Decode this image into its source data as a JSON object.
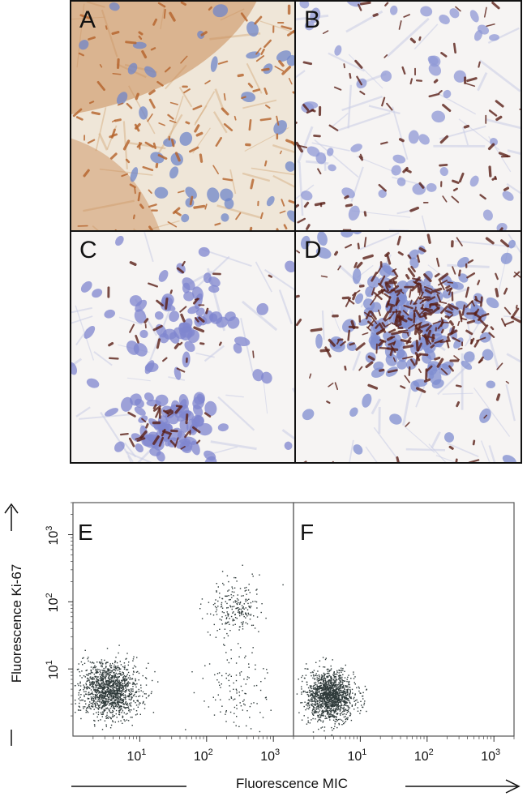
{
  "figure": {
    "micrographs": [
      {
        "id": "A",
        "label": "A",
        "stain": "brown-dense"
      },
      {
        "id": "B",
        "label": "B",
        "stain": "sparse"
      },
      {
        "id": "C",
        "label": "C",
        "stain": "cluster"
      },
      {
        "id": "D",
        "label": "D",
        "stain": "dense-cluster"
      }
    ],
    "flow_panels": [
      {
        "id": "E",
        "label": "E"
      },
      {
        "id": "F",
        "label": "F"
      }
    ],
    "y_axis_label": "Fluorescence Ki-67",
    "x_axis_label": "Fluorescence MIC",
    "y_ticks": [
      {
        "base": "10",
        "exp": "1"
      },
      {
        "base": "10",
        "exp": "2"
      },
      {
        "base": "10",
        "exp": "3"
      }
    ],
    "x_ticks": [
      {
        "base": "10",
        "exp": "1"
      },
      {
        "base": "10",
        "exp": "2"
      },
      {
        "base": "10",
        "exp": "3"
      }
    ],
    "colors": {
      "nuclei": "#6f86c9",
      "brown_stain": "#b5622a",
      "dark_stain": "#5a2018",
      "dots": "#2f3a3a"
    }
  },
  "chart_data": {
    "type": "scatter",
    "xlabel": "Fluorescence MIC",
    "ylabel": "Fluorescence Ki-67",
    "x_scale": "log",
    "y_scale": "log",
    "xlim": [
      1,
      2000
    ],
    "ylim": [
      1,
      3000
    ],
    "panels": [
      {
        "label": "E",
        "populations": [
          {
            "center_x": 3.5,
            "center_y": 5,
            "spread_decades": 0.35,
            "approx_count": 1400
          },
          {
            "center_x": 250,
            "center_y": 80,
            "spread_decades": 0.35,
            "approx_count": 220
          },
          {
            "center_x": 250,
            "center_y": 5,
            "spread_decades": 0.5,
            "approx_count": 120
          }
        ]
      },
      {
        "label": "F",
        "populations": [
          {
            "center_x": 3.5,
            "center_y": 4,
            "spread_decades": 0.3,
            "approx_count": 1500
          }
        ]
      }
    ]
  }
}
